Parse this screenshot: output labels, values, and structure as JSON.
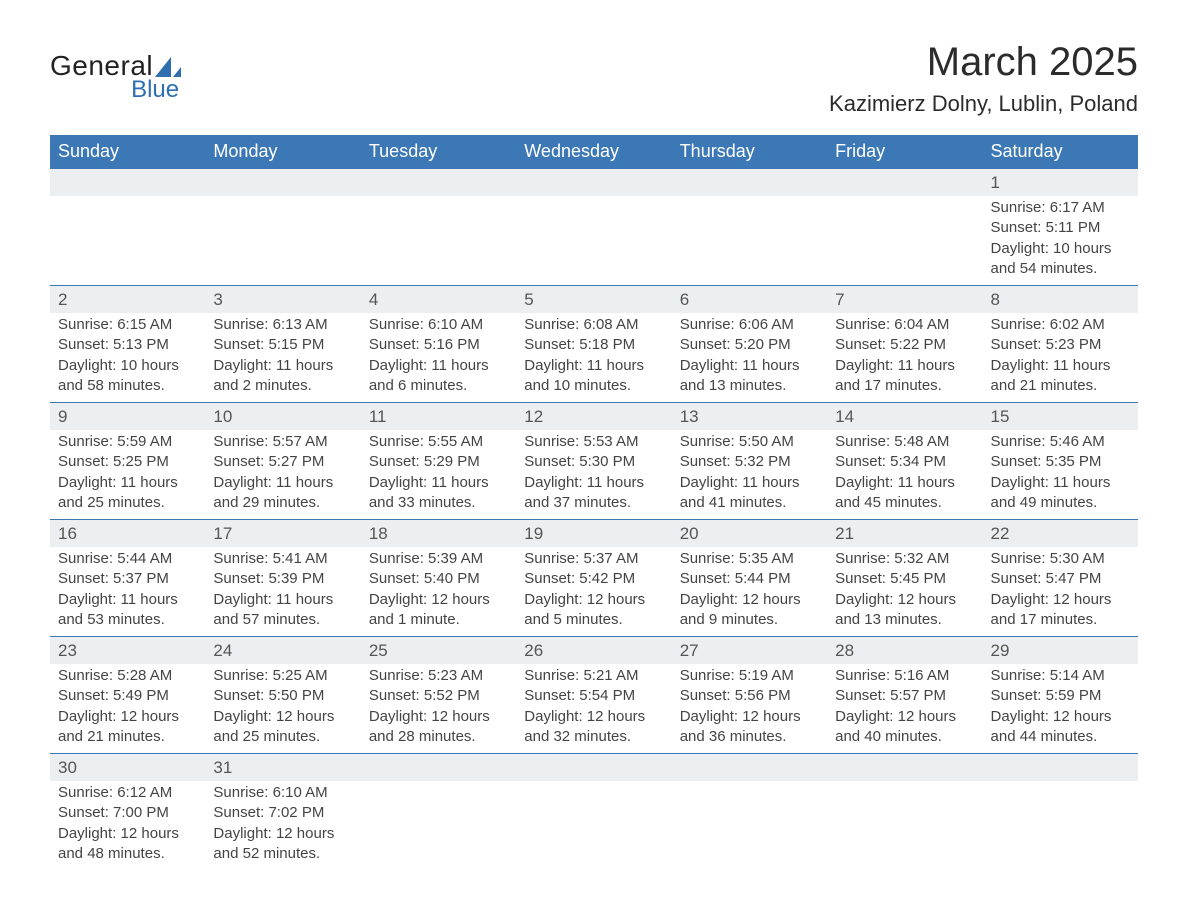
{
  "logo": {
    "text_main": "General",
    "text_sub": "Blue",
    "sub_color": "#2f6fb0",
    "sail_color": "#2f6fb0"
  },
  "title": "March 2025",
  "location": "Kazimierz Dolny, Lublin, Poland",
  "colors": {
    "header_bg": "#3b78b5",
    "header_text": "#ffffff",
    "daynum_bg": "#eceff1",
    "row_border": "#3b78b5",
    "body_text": "#444444"
  },
  "fonts": {
    "title_size": 40,
    "location_size": 22,
    "header_size": 18,
    "daynum_size": 17,
    "cell_size": 15
  },
  "weekdays": [
    "Sunday",
    "Monday",
    "Tuesday",
    "Wednesday",
    "Thursday",
    "Friday",
    "Saturday"
  ],
  "weeks": [
    {
      "days": [
        null,
        null,
        null,
        null,
        null,
        null,
        {
          "n": "1",
          "sunrise": "Sunrise: 6:17 AM",
          "sunset": "Sunset: 5:11 PM",
          "daylight": "Daylight: 10 hours and 54 minutes."
        }
      ]
    },
    {
      "days": [
        {
          "n": "2",
          "sunrise": "Sunrise: 6:15 AM",
          "sunset": "Sunset: 5:13 PM",
          "daylight": "Daylight: 10 hours and 58 minutes."
        },
        {
          "n": "3",
          "sunrise": "Sunrise: 6:13 AM",
          "sunset": "Sunset: 5:15 PM",
          "daylight": "Daylight: 11 hours and 2 minutes."
        },
        {
          "n": "4",
          "sunrise": "Sunrise: 6:10 AM",
          "sunset": "Sunset: 5:16 PM",
          "daylight": "Daylight: 11 hours and 6 minutes."
        },
        {
          "n": "5",
          "sunrise": "Sunrise: 6:08 AM",
          "sunset": "Sunset: 5:18 PM",
          "daylight": "Daylight: 11 hours and 10 minutes."
        },
        {
          "n": "6",
          "sunrise": "Sunrise: 6:06 AM",
          "sunset": "Sunset: 5:20 PM",
          "daylight": "Daylight: 11 hours and 13 minutes."
        },
        {
          "n": "7",
          "sunrise": "Sunrise: 6:04 AM",
          "sunset": "Sunset: 5:22 PM",
          "daylight": "Daylight: 11 hours and 17 minutes."
        },
        {
          "n": "8",
          "sunrise": "Sunrise: 6:02 AM",
          "sunset": "Sunset: 5:23 PM",
          "daylight": "Daylight: 11 hours and 21 minutes."
        }
      ]
    },
    {
      "days": [
        {
          "n": "9",
          "sunrise": "Sunrise: 5:59 AM",
          "sunset": "Sunset: 5:25 PM",
          "daylight": "Daylight: 11 hours and 25 minutes."
        },
        {
          "n": "10",
          "sunrise": "Sunrise: 5:57 AM",
          "sunset": "Sunset: 5:27 PM",
          "daylight": "Daylight: 11 hours and 29 minutes."
        },
        {
          "n": "11",
          "sunrise": "Sunrise: 5:55 AM",
          "sunset": "Sunset: 5:29 PM",
          "daylight": "Daylight: 11 hours and 33 minutes."
        },
        {
          "n": "12",
          "sunrise": "Sunrise: 5:53 AM",
          "sunset": "Sunset: 5:30 PM",
          "daylight": "Daylight: 11 hours and 37 minutes."
        },
        {
          "n": "13",
          "sunrise": "Sunrise: 5:50 AM",
          "sunset": "Sunset: 5:32 PM",
          "daylight": "Daylight: 11 hours and 41 minutes."
        },
        {
          "n": "14",
          "sunrise": "Sunrise: 5:48 AM",
          "sunset": "Sunset: 5:34 PM",
          "daylight": "Daylight: 11 hours and 45 minutes."
        },
        {
          "n": "15",
          "sunrise": "Sunrise: 5:46 AM",
          "sunset": "Sunset: 5:35 PM",
          "daylight": "Daylight: 11 hours and 49 minutes."
        }
      ]
    },
    {
      "days": [
        {
          "n": "16",
          "sunrise": "Sunrise: 5:44 AM",
          "sunset": "Sunset: 5:37 PM",
          "daylight": "Daylight: 11 hours and 53 minutes."
        },
        {
          "n": "17",
          "sunrise": "Sunrise: 5:41 AM",
          "sunset": "Sunset: 5:39 PM",
          "daylight": "Daylight: 11 hours and 57 minutes."
        },
        {
          "n": "18",
          "sunrise": "Sunrise: 5:39 AM",
          "sunset": "Sunset: 5:40 PM",
          "daylight": "Daylight: 12 hours and 1 minute."
        },
        {
          "n": "19",
          "sunrise": "Sunrise: 5:37 AM",
          "sunset": "Sunset: 5:42 PM",
          "daylight": "Daylight: 12 hours and 5 minutes."
        },
        {
          "n": "20",
          "sunrise": "Sunrise: 5:35 AM",
          "sunset": "Sunset: 5:44 PM",
          "daylight": "Daylight: 12 hours and 9 minutes."
        },
        {
          "n": "21",
          "sunrise": "Sunrise: 5:32 AM",
          "sunset": "Sunset: 5:45 PM",
          "daylight": "Daylight: 12 hours and 13 minutes."
        },
        {
          "n": "22",
          "sunrise": "Sunrise: 5:30 AM",
          "sunset": "Sunset: 5:47 PM",
          "daylight": "Daylight: 12 hours and 17 minutes."
        }
      ]
    },
    {
      "days": [
        {
          "n": "23",
          "sunrise": "Sunrise: 5:28 AM",
          "sunset": "Sunset: 5:49 PM",
          "daylight": "Daylight: 12 hours and 21 minutes."
        },
        {
          "n": "24",
          "sunrise": "Sunrise: 5:25 AM",
          "sunset": "Sunset: 5:50 PM",
          "daylight": "Daylight: 12 hours and 25 minutes."
        },
        {
          "n": "25",
          "sunrise": "Sunrise: 5:23 AM",
          "sunset": "Sunset: 5:52 PM",
          "daylight": "Daylight: 12 hours and 28 minutes."
        },
        {
          "n": "26",
          "sunrise": "Sunrise: 5:21 AM",
          "sunset": "Sunset: 5:54 PM",
          "daylight": "Daylight: 12 hours and 32 minutes."
        },
        {
          "n": "27",
          "sunrise": "Sunrise: 5:19 AM",
          "sunset": "Sunset: 5:56 PM",
          "daylight": "Daylight: 12 hours and 36 minutes."
        },
        {
          "n": "28",
          "sunrise": "Sunrise: 5:16 AM",
          "sunset": "Sunset: 5:57 PM",
          "daylight": "Daylight: 12 hours and 40 minutes."
        },
        {
          "n": "29",
          "sunrise": "Sunrise: 5:14 AM",
          "sunset": "Sunset: 5:59 PM",
          "daylight": "Daylight: 12 hours and 44 minutes."
        }
      ]
    },
    {
      "days": [
        {
          "n": "30",
          "sunrise": "Sunrise: 6:12 AM",
          "sunset": "Sunset: 7:00 PM",
          "daylight": "Daylight: 12 hours and 48 minutes."
        },
        {
          "n": "31",
          "sunrise": "Sunrise: 6:10 AM",
          "sunset": "Sunset: 7:02 PM",
          "daylight": "Daylight: 12 hours and 52 minutes."
        },
        null,
        null,
        null,
        null,
        null
      ]
    }
  ]
}
